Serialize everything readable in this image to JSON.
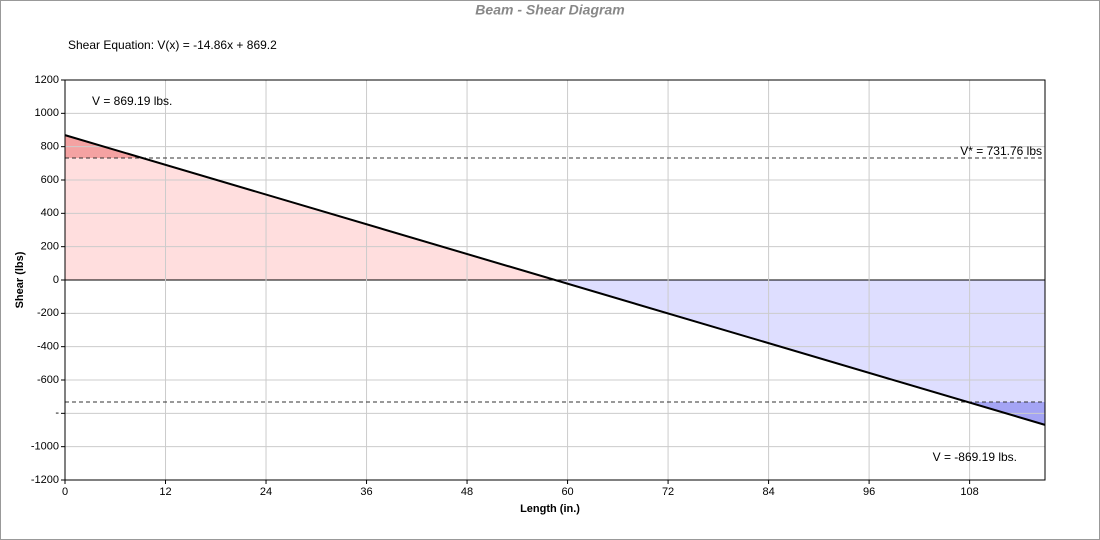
{
  "chart_data": {
    "type": "line",
    "title": "Beam - Shear Diagram",
    "subtitle": "Shear Equation:  V(x) = -14.86x + 869.2",
    "x_label": "Length (in.)",
    "y_label": "Shear (lbs)",
    "x": [
      0,
      117
    ],
    "series": [
      {
        "color": "#000000",
        "values": [
          869.19,
          -869.19
        ]
      }
    ],
    "xlim": [
      0,
      117
    ],
    "xticks": [
      0,
      12,
      24,
      36,
      48,
      60,
      72,
      84,
      96,
      108
    ],
    "ylim": [
      -1200,
      1200
    ],
    "yticks": [
      1200,
      1000,
      800,
      600,
      400,
      200,
      0,
      -200,
      -400,
      -600,
      {
        "value": -800,
        "label": "-"
      },
      -1000,
      -1200
    ],
    "grid": true,
    "limits": [
      {
        "value": 731.76,
        "label": "V* = 731.76 lbs"
      },
      {
        "value": -731.76
      }
    ],
    "annotations": [
      "V = 869.19 lbs.",
      "V = -869.19 lbs."
    ],
    "fill_colors": {
      "positive": "#ffdede",
      "negative": "#dedeff",
      "positive_over": "#f4a2a2",
      "negative_over": "#a4a4f4"
    }
  }
}
